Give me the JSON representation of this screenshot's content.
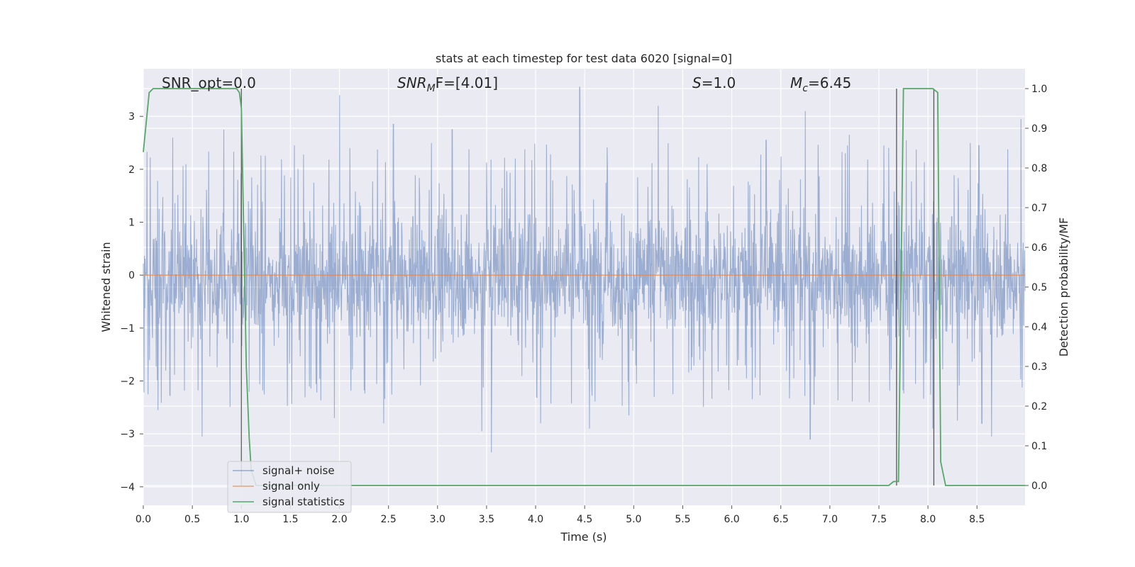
{
  "chart_data": {
    "type": "line",
    "title": "stats at each timestep for test data 6020 [signal=0]",
    "xlabel": "Time (s)",
    "ylabel_left": "Whitened strain",
    "ylabel_right": "Detection probability/MF",
    "xlim": [
      0.0,
      8.99
    ],
    "ylim_left": [
      -4.35,
      3.9
    ],
    "ylim_right": [
      -0.05,
      1.05
    ],
    "x_ticks": [
      "0.0",
      "0.5",
      "1.0",
      "1.5",
      "2.0",
      "2.5",
      "3.0",
      "3.5",
      "4.0",
      "4.5",
      "5.0",
      "5.5",
      "6.0",
      "6.5",
      "7.0",
      "7.5",
      "8.0",
      "8.5"
    ],
    "y_left_ticks": [
      "−4",
      "−3",
      "−2",
      "−1",
      "0",
      "1",
      "2",
      "3"
    ],
    "y_right_ticks": [
      "0.0",
      "0.1",
      "0.2",
      "0.3",
      "0.4",
      "0.5",
      "0.6",
      "0.7",
      "0.8",
      "0.9",
      "1.0"
    ],
    "grid": true,
    "background_color": "#eaeaf2",
    "annotations": {
      "snr_opt": "SNR_opt=0.0",
      "snr_mf_label": "SNR",
      "snr_mf_sub": "M",
      "snr_mf_value": "F=[4.01]",
      "s_label": "S",
      "s_value": "=1.0",
      "mc_label": "M",
      "mc_sub": "c",
      "mc_value": "=6.45"
    },
    "series": [
      {
        "name": "signal+ noise",
        "color": "#4c72b0",
        "axis": "left",
        "description_stats": {
          "typical_band": [
            -1.5,
            1.5
          ],
          "max": 3.55,
          "min": -3.35
        },
        "spikes_up": [
          [
            0.05,
            2.45
          ],
          [
            0.3,
            2.6
          ],
          [
            0.6,
            2.55
          ],
          [
            0.82,
            2.75
          ],
          [
            2.0,
            3.4
          ],
          [
            2.55,
            2.85
          ],
          [
            3.15,
            2.75
          ],
          [
            4.45,
            3.55
          ],
          [
            4.95,
            2.7
          ],
          [
            5.25,
            3.2
          ],
          [
            6.35,
            2.55
          ],
          [
            6.75,
            3.1
          ],
          [
            7.2,
            2.65
          ],
          [
            7.55,
            2.45
          ],
          [
            7.78,
            2.55
          ],
          [
            8.52,
            2.45
          ],
          [
            8.95,
            2.95
          ]
        ],
        "spikes_down": [
          [
            0.05,
            -2.25
          ],
          [
            0.15,
            -2.55
          ],
          [
            0.6,
            -3.05
          ],
          [
            1.95,
            -2.7
          ],
          [
            2.45,
            -2.8
          ],
          [
            3.45,
            -2.95
          ],
          [
            3.55,
            -3.35
          ],
          [
            4.05,
            -2.8
          ],
          [
            4.55,
            -2.9
          ],
          [
            4.95,
            -2.65
          ],
          [
            6.8,
            -3.1
          ],
          [
            7.4,
            -2.4
          ],
          [
            8.05,
            -2.9
          ],
          [
            8.3,
            -2.75
          ],
          [
            8.55,
            -2.8
          ],
          [
            8.65,
            -3.05
          ]
        ]
      },
      {
        "name": "signal only",
        "color": "#dd8452",
        "axis": "left",
        "x": [
          0.0,
          8.99
        ],
        "y": [
          0.0,
          0.0
        ]
      },
      {
        "name": "signal statistics",
        "color": "#55a868",
        "axis": "right",
        "x": [
          0.0,
          0.06,
          0.1,
          0.2,
          0.5,
          0.95,
          0.98,
          1.0,
          1.05,
          1.08,
          1.1,
          1.15,
          7.6,
          7.65,
          7.7,
          7.75,
          8.05,
          8.1,
          8.13,
          8.18,
          8.99
        ],
        "y": [
          0.84,
          0.99,
          1.0,
          1.0,
          1.0,
          1.0,
          0.99,
          0.95,
          0.3,
          0.12,
          0.04,
          0.0,
          0.0,
          0.01,
          0.01,
          1.0,
          1.0,
          0.99,
          0.06,
          0.0,
          0.0
        ]
      }
    ],
    "vertical_markers_x": [
      1.0,
      7.68,
      8.06
    ],
    "legend": {
      "position": "lower-left",
      "entries": [
        "signal+ noise",
        "signal only",
        "signal statistics"
      ]
    }
  }
}
